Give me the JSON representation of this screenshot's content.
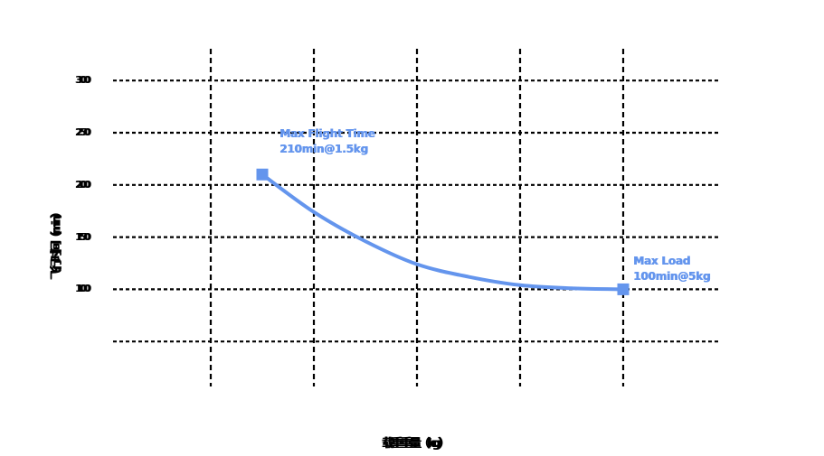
{
  "page": {
    "background": "#ffffff"
  },
  "colors": {
    "accent_blue": "#6495ED",
    "grid_black": "#000000"
  },
  "chart_data": {
    "type": "line",
    "title": "",
    "xlabel": "载重重量（kg）",
    "ylabel": "飞行时间（min）",
    "x_axis": {
      "unit": "kg",
      "gridline_values": [
        1,
        2,
        3,
        4,
        5
      ],
      "tick_labels_visible": false
    },
    "y_axis": {
      "unit": "min",
      "gridline_values": [
        300,
        250,
        200,
        150,
        100,
        50
      ],
      "tick_labels": [
        "300",
        "250",
        "200",
        "150",
        "100"
      ]
    },
    "grid": {
      "style": "dashed",
      "color": "#000000",
      "legend": "off"
    },
    "series": [
      {
        "name": "flight-time-vs-payload",
        "color": "#6495ED",
        "endpoint_markers": "square",
        "points": [
          {
            "kg": 1.5,
            "min": 210
          },
          {
            "kg": 2.0,
            "min": 174
          },
          {
            "kg": 2.5,
            "min": 146
          },
          {
            "kg": 3.0,
            "min": 124
          },
          {
            "kg": 3.5,
            "min": 112
          },
          {
            "kg": 4.0,
            "min": 104
          },
          {
            "kg": 4.5,
            "min": 101
          },
          {
            "kg": 5.0,
            "min": 100
          }
        ]
      }
    ],
    "annotations": [
      {
        "name": "max-flight-time-annotation",
        "lines": [
          "Max Flight Time",
          "210min@1.5kg"
        ],
        "anchor": {
          "kg": 1.5,
          "min": 210
        }
      },
      {
        "name": "max-load-annotation",
        "lines": [
          "Max Load",
          "100min@5kg"
        ],
        "anchor": {
          "kg": 5,
          "min": 100
        }
      }
    ]
  }
}
